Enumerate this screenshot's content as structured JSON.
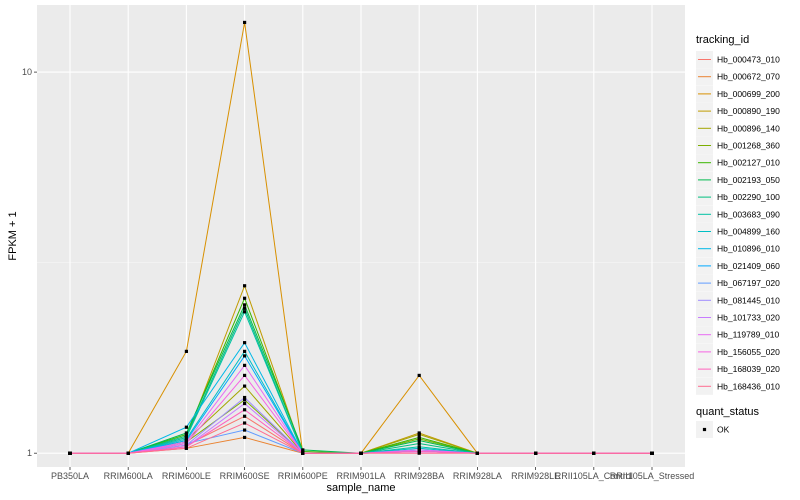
{
  "chart_data": {
    "type": "line",
    "xlabel": "sample_name",
    "ylabel": "FPKM + 1",
    "y_scale": "log10",
    "ylim": [
      0.92,
      15
    ],
    "yticks": [
      1,
      10
    ],
    "grid": true,
    "legend_placement": "right",
    "categories": [
      "PB350LA",
      "RRIM600LA",
      "RRIM600LE",
      "RRIM600SE",
      "RRIM600PE",
      "RRIM901LA",
      "RRIM928BA",
      "RRIM928LA",
      "RRIM928LE",
      "RRII105LA_Control",
      "RRII105LA_Stressed"
    ],
    "legend_title": "tracking_id",
    "series": [
      {
        "name": "Hb_000473_010",
        "color": "#F8766D",
        "values": [
          1,
          1,
          1.05,
          1.25,
          1,
          1,
          1.01,
          1,
          1,
          1,
          1
        ]
      },
      {
        "name": "Hb_000672_070",
        "color": "#EA8331",
        "values": [
          1,
          1,
          1.03,
          1.1,
          1,
          1,
          1.02,
          1,
          1,
          1,
          1
        ]
      },
      {
        "name": "Hb_000699_200",
        "color": "#D89000",
        "values": [
          1,
          1,
          1.85,
          13.5,
          1,
          1,
          1.6,
          1,
          1,
          1,
          1
        ]
      },
      {
        "name": "Hb_000890_190",
        "color": "#C09B00",
        "values": [
          1,
          1,
          1.1,
          2.75,
          1,
          1,
          1.13,
          1,
          1,
          1,
          1
        ]
      },
      {
        "name": "Hb_000896_140",
        "color": "#A3A500",
        "values": [
          1,
          1,
          1.08,
          1.5,
          1,
          1,
          1.12,
          1,
          1,
          1,
          1
        ]
      },
      {
        "name": "Hb_001268_360",
        "color": "#7CAE00",
        "values": [
          1,
          1,
          1.07,
          1.38,
          1,
          1,
          1.09,
          1,
          1,
          1,
          1
        ]
      },
      {
        "name": "Hb_002127_010",
        "color": "#39B600",
        "values": [
          1,
          1,
          1.12,
          2.55,
          1.01,
          1,
          1.1,
          1,
          1,
          1,
          1
        ]
      },
      {
        "name": "Hb_002193_050",
        "color": "#00BB4E",
        "values": [
          1,
          1,
          1.13,
          2.45,
          1.02,
          1,
          1.08,
          1,
          1,
          1,
          1
        ]
      },
      {
        "name": "Hb_002290_100",
        "color": "#00BF7D",
        "values": [
          1,
          1,
          1.11,
          2.4,
          1,
          1,
          1.06,
          1,
          1,
          1,
          1
        ]
      },
      {
        "name": "Hb_003683_090",
        "color": "#00C1A3",
        "values": [
          1,
          1,
          1.1,
          2.35,
          1,
          1,
          1.04,
          1,
          1,
          1,
          1
        ]
      },
      {
        "name": "Hb_004899_160",
        "color": "#00BFC4",
        "values": [
          1,
          1,
          1.09,
          1.85,
          1,
          1,
          1.03,
          1,
          1,
          1,
          1
        ]
      },
      {
        "name": "Hb_010896_010",
        "color": "#00B8E7",
        "values": [
          1,
          1,
          1.17,
          1.95,
          1,
          1,
          1.02,
          1,
          1,
          1,
          1
        ]
      },
      {
        "name": "Hb_021409_060",
        "color": "#00A9FF",
        "values": [
          1,
          1,
          1.08,
          1.8,
          1,
          1,
          1.01,
          1,
          1,
          1,
          1
        ]
      },
      {
        "name": "Hb_067197_020",
        "color": "#619CFF",
        "values": [
          1,
          1,
          1.06,
          1.15,
          1,
          1,
          1.02,
          1,
          1,
          1,
          1
        ]
      },
      {
        "name": "Hb_081445_010",
        "color": "#9F8CFF",
        "values": [
          1,
          1,
          1.05,
          1.4,
          1,
          1,
          1.01,
          1,
          1,
          1,
          1
        ]
      },
      {
        "name": "Hb_101733_020",
        "color": "#C77CFF",
        "values": [
          1,
          1,
          1.04,
          1.35,
          1,
          1,
          1.01,
          1,
          1,
          1,
          1
        ]
      },
      {
        "name": "Hb_119789_010",
        "color": "#E76BF3",
        "values": [
          1,
          1,
          1.07,
          1.7,
          1,
          1,
          1.02,
          1,
          1,
          1,
          1
        ]
      },
      {
        "name": "Hb_156055_020",
        "color": "#F564E3",
        "values": [
          1,
          1,
          1.06,
          1.6,
          1,
          1,
          1.01,
          1,
          1,
          1,
          1
        ]
      },
      {
        "name": "Hb_168039_020",
        "color": "#FF62BC",
        "values": [
          1,
          1,
          1.04,
          1.3,
          1,
          1,
          1.01,
          1,
          1,
          1,
          1
        ]
      },
      {
        "name": "Hb_168436_010",
        "color": "#FF6C91",
        "values": [
          1,
          1,
          1.03,
          1.2,
          1,
          1,
          1,
          1,
          1,
          1,
          1
        ]
      }
    ],
    "point_legend": {
      "title": "quant_status",
      "items": [
        "OK"
      ]
    }
  }
}
